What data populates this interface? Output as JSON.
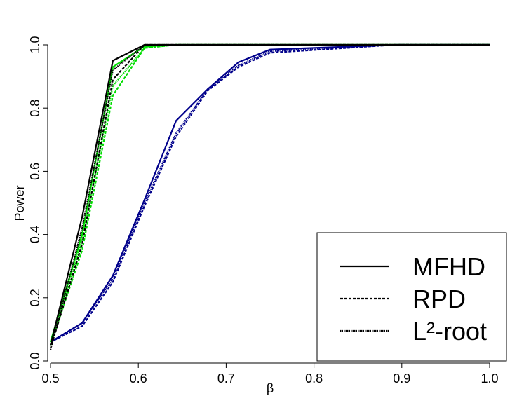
{
  "chart_data": {
    "type": "line",
    "x_label": "β",
    "y_label": "Power",
    "x": [
      0.5,
      0.536,
      0.571,
      0.607,
      0.643,
      0.679,
      0.714,
      0.75,
      0.893,
      1.0
    ],
    "xlim": [
      0.5,
      1.0
    ],
    "xticks": [
      0.5,
      0.6,
      0.7,
      0.8,
      0.9,
      {
        "value": 1.0,
        "label": "1.0"
      }
    ],
    "ylim": [
      0,
      1.0
    ],
    "yticks": [
      {
        "value": 0,
        "label": "0.0"
      },
      0.2,
      0.4,
      0.6,
      0.8,
      {
        "value": 1.0,
        "label": "1.0"
      }
    ],
    "legend_position": "bottom-right",
    "series": [
      {
        "color": "#00008b",
        "dash": "solid",
        "values": [
          0.06,
          0.12,
          0.27,
          0.51,
          0.76,
          0.86,
          0.945,
          0.985,
          1.0,
          1.0
        ]
      },
      {
        "color": "#00008b",
        "dash": "dashed",
        "values": [
          0.06,
          0.11,
          0.25,
          0.49,
          0.71,
          0.855,
          0.93,
          0.975,
          1.0,
          1.0
        ]
      },
      {
        "color": "#00008b",
        "dash": "dotted",
        "values": [
          0.06,
          0.12,
          0.26,
          0.5,
          0.72,
          0.86,
          0.935,
          0.98,
          1.0,
          1.0
        ]
      },
      {
        "color": "#00dd00",
        "dash": "solid",
        "values": [
          0.06,
          0.4,
          0.93,
          0.995,
          1.0,
          1.0,
          1.0,
          1.0,
          1.0,
          1.0
        ]
      },
      {
        "color": "#00dd00",
        "dash": "dashed",
        "values": [
          0.05,
          0.35,
          0.84,
          0.99,
          1.0,
          1.0,
          1.0,
          1.0,
          1.0,
          1.0
        ]
      },
      {
        "color": "#00dd00",
        "dash": "dotted",
        "values": [
          0.06,
          0.38,
          0.87,
          0.99,
          1.0,
          1.0,
          1.0,
          1.0,
          1.0,
          1.0
        ]
      },
      {
        "name": "MFHD",
        "color": "#000000",
        "dash": "solid",
        "values": [
          0.05,
          0.455,
          0.95,
          1.0,
          1.0,
          1.0,
          1.0,
          1.0,
          1.0,
          1.0
        ]
      },
      {
        "name": "RPD",
        "color": "#000000",
        "dash": "dashed",
        "values": [
          0.04,
          0.37,
          0.89,
          1.0,
          1.0,
          1.0,
          1.0,
          1.0,
          1.0,
          1.0
        ]
      },
      {
        "name": "L²-root",
        "color": "#000000",
        "dash": "dotted",
        "values": [
          0.035,
          0.42,
          0.92,
          1.0,
          1.0,
          1.0,
          1.0,
          1.0,
          1.0,
          1.0
        ]
      }
    ]
  }
}
